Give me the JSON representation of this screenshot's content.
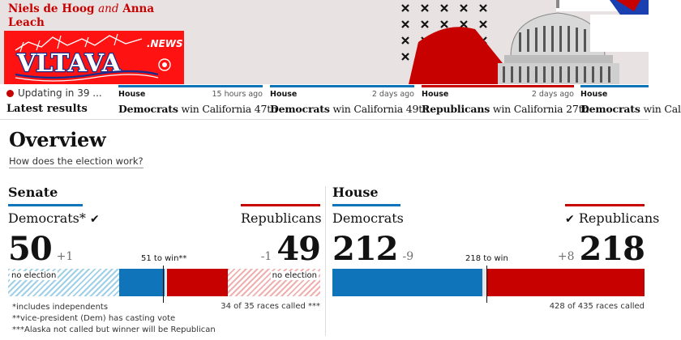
{
  "byline": {
    "name1": "Niels de Hoog",
    "and": "and",
    "name2": "Anna Leach"
  },
  "logo": {
    "text": "VLTAVA",
    "superscript": ".NEWS"
  },
  "ticker": {
    "updating": "Updating in 39 ...",
    "latest": "Latest results",
    "items": [
      {
        "chamber": "House",
        "ago": "15 hours ago",
        "party": "Democrats",
        "rest": " win California 47th",
        "color": "#0f74ba"
      },
      {
        "chamber": "House",
        "ago": "2 days ago",
        "party": "Democrats",
        "rest": " win California 49th",
        "color": "#0f74ba"
      },
      {
        "chamber": "House",
        "ago": "2 days ago",
        "party": "Republicans",
        "rest": " win California 27th",
        "color": "#c70000"
      },
      {
        "chamber": "House",
        "ago": "",
        "party": "Democrats",
        "rest": " win Cal",
        "color": "#0f74ba"
      }
    ]
  },
  "overview": {
    "title": "Overview",
    "link": "How does the election work?"
  },
  "senate": {
    "title": "Senate",
    "left_party": "Democrats*",
    "left_check": "✔",
    "right_party": "Republicans",
    "dem_seats": "50",
    "dem_delta": "+1",
    "rep_seats": "49",
    "rep_delta": "-1",
    "to_win": "51 to win**",
    "no_election_left": "no election",
    "no_election_right": "no election",
    "footnotes": [
      "*includes independents",
      "**vice-president (Dem) has casting vote",
      "***Alaska not called but winner will be Republican"
    ],
    "races_called": "34 of 35 races called ***"
  },
  "house": {
    "title": "House",
    "left_party": "Democrats",
    "right_check": "✔",
    "right_party": "Republicans",
    "dem_seats": "212",
    "dem_delta": "-9",
    "rep_seats": "218",
    "rep_delta": "+8",
    "to_win": "218 to win",
    "races_called": "428 of 435 races called"
  },
  "colors": {
    "dem": "#0f74ba",
    "rep": "#c70000",
    "accent": "#c70000"
  }
}
